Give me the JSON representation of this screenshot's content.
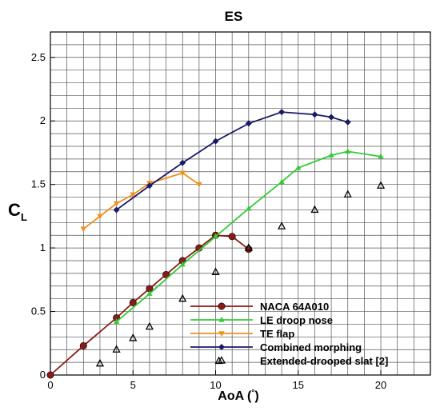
{
  "chart_data": {
    "type": "line",
    "title": "ES",
    "xlabel_main": "AoA (",
    "xlabel_unit_symbol": "°",
    "xlabel_close": ")",
    "ylabel_main": "C",
    "ylabel_sub": "L",
    "xlim": [
      0,
      23
    ],
    "ylim": [
      0,
      2.7
    ],
    "x_ticks": [
      0,
      5,
      10,
      15,
      20
    ],
    "y_ticks": [
      0,
      0.5,
      1,
      1.5,
      2,
      2.5
    ],
    "x_tick_labels": [
      "0",
      "5",
      "10",
      "15",
      "20"
    ],
    "y_tick_labels": [
      "0",
      "0.5",
      "1",
      "1.5",
      "2",
      "2.5"
    ],
    "grid": true,
    "legend_position": "bottom-right",
    "series": [
      {
        "name": "NACA 64A010",
        "color": "#8b1a1a",
        "marker": "circle",
        "line": true,
        "x": [
          0,
          2,
          4,
          5,
          6,
          7,
          8,
          9,
          10,
          11,
          12
        ],
        "y": [
          0.0,
          0.23,
          0.45,
          0.57,
          0.68,
          0.79,
          0.9,
          1.0,
          1.1,
          1.09,
          0.99
        ]
      },
      {
        "name": "LE droop nose",
        "color": "#33cc33",
        "marker": "triangle-up",
        "line": true,
        "x": [
          4,
          6,
          8,
          10,
          12,
          14,
          15,
          17,
          18,
          20
        ],
        "y": [
          0.42,
          0.64,
          0.87,
          1.09,
          1.31,
          1.52,
          1.63,
          1.73,
          1.76,
          1.72
        ]
      },
      {
        "name": "TE flap",
        "color": "#f0901a",
        "marker": "triangle-down",
        "line": true,
        "x": [
          2,
          3,
          4,
          5,
          6,
          8,
          9
        ],
        "y": [
          1.15,
          1.25,
          1.35,
          1.42,
          1.51,
          1.59,
          1.5
        ]
      },
      {
        "name": "Combined morphing",
        "color": "#1a1a66",
        "marker": "diamond",
        "line": true,
        "x": [
          4,
          6,
          8,
          10,
          12,
          14,
          16,
          17,
          18
        ],
        "y": [
          1.3,
          1.49,
          1.67,
          1.84,
          1.98,
          2.07,
          2.05,
          2.03,
          1.99
        ]
      },
      {
        "name": "Extended-drooped slat [2]",
        "color": "#000000",
        "marker": "open-triangle",
        "line": false,
        "x": [
          3,
          4,
          5,
          6,
          8,
          10,
          10.2,
          12,
          14,
          16,
          18,
          20
        ],
        "y": [
          0.09,
          0.2,
          0.29,
          0.38,
          0.6,
          0.81,
          0.11,
          1.0,
          1.17,
          1.3,
          1.42,
          1.49
        ]
      }
    ]
  }
}
